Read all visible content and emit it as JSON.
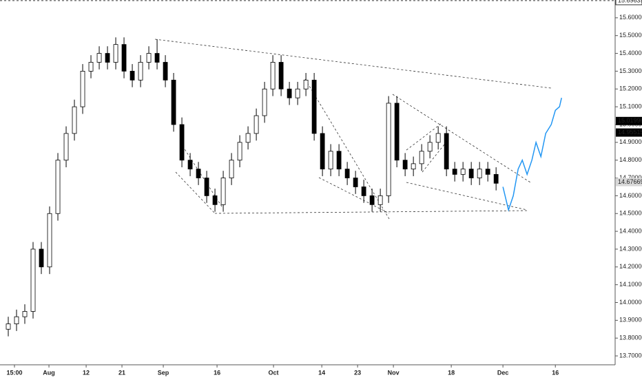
{
  "chart_data": {
    "type": "candlestick",
    "open": [
      13.85,
      13.88,
      13.92,
      13.95,
      14.3,
      14.2,
      14.5,
      14.8,
      14.95,
      15.1,
      15.3,
      15.35,
      15.4,
      15.35,
      15.45,
      15.3,
      15.25,
      15.35,
      15.4,
      15.35,
      15.25,
      15.0,
      14.8,
      14.75,
      14.7,
      14.6,
      14.55,
      14.7,
      14.8,
      14.9,
      14.95,
      15.05,
      15.2,
      15.35,
      15.2,
      15.15,
      15.2,
      15.25,
      14.95,
      14.75,
      14.85,
      14.75,
      14.7,
      14.65,
      14.6,
      14.55,
      14.6,
      15.12,
      14.8,
      14.75,
      14.78,
      14.85,
      14.9,
      14.95,
      14.75,
      14.72,
      14.75,
      14.7,
      14.75,
      14.72
    ],
    "high": [
      13.92,
      13.96,
      13.99,
      14.34,
      14.34,
      14.54,
      14.84,
      14.99,
      15.14,
      15.34,
      15.39,
      15.44,
      15.44,
      15.49,
      15.49,
      15.34,
      15.39,
      15.44,
      15.48,
      15.39,
      15.29,
      15.04,
      14.84,
      14.79,
      14.74,
      14.64,
      14.74,
      14.84,
      14.94,
      14.99,
      15.09,
      15.24,
      15.39,
      15.39,
      15.24,
      15.24,
      15.29,
      15.29,
      14.99,
      14.89,
      14.89,
      14.79,
      14.74,
      14.69,
      14.64,
      14.64,
      15.16,
      15.16,
      14.84,
      14.82,
      14.89,
      14.94,
      14.99,
      14.99,
      14.79,
      14.79,
      14.79,
      14.79,
      14.79,
      14.76
    ],
    "low": [
      13.81,
      13.84,
      13.88,
      13.91,
      14.16,
      14.16,
      14.46,
      14.76,
      14.91,
      15.06,
      15.26,
      15.31,
      15.31,
      15.31,
      15.26,
      15.21,
      15.21,
      15.31,
      15.31,
      15.21,
      14.96,
      14.76,
      14.71,
      14.66,
      14.56,
      14.51,
      14.51,
      14.66,
      14.76,
      14.86,
      14.91,
      15.01,
      15.16,
      15.16,
      15.11,
      15.11,
      15.16,
      14.91,
      14.71,
      14.71,
      14.71,
      14.66,
      14.61,
      14.56,
      14.51,
      14.51,
      14.56,
      14.76,
      14.71,
      14.71,
      14.74,
      14.81,
      14.86,
      14.71,
      14.68,
      14.68,
      14.66,
      14.66,
      14.68,
      14.63
    ],
    "close": [
      13.88,
      13.92,
      13.95,
      14.3,
      14.2,
      14.5,
      14.8,
      14.95,
      15.1,
      15.3,
      15.35,
      15.4,
      15.35,
      15.45,
      15.3,
      15.25,
      15.35,
      15.4,
      15.35,
      15.25,
      15.0,
      14.8,
      14.75,
      14.7,
      14.6,
      14.55,
      14.7,
      14.8,
      14.9,
      14.95,
      15.05,
      15.2,
      15.35,
      15.2,
      15.15,
      15.2,
      15.25,
      14.95,
      14.75,
      14.85,
      14.75,
      14.7,
      14.65,
      14.6,
      14.55,
      14.6,
      15.12,
      14.8,
      14.75,
      14.78,
      14.85,
      14.9,
      14.95,
      14.75,
      14.72,
      14.75,
      14.7,
      14.75,
      14.72,
      14.67
    ],
    "projection": {
      "color": "#2196f3",
      "x": [
        59.83,
        60.5,
        61.08,
        61.67,
        62.17,
        62.75,
        63.33,
        63.83,
        64.42,
        65,
        65.67,
        66.17,
        66.67,
        66.92
      ],
      "values": [
        14.65,
        14.52,
        14.6,
        14.75,
        14.8,
        14.72,
        14.8,
        14.9,
        14.82,
        14.95,
        15.0,
        15.08,
        15.1,
        15.15
      ]
    },
    "xlim": [
      -1,
      73.4
    ],
    "xticks": [
      {
        "value": 0.75,
        "label": "15:00"
      },
      {
        "value": 4.92,
        "label": "Aug"
      },
      {
        "value": 9.42,
        "label": "12"
      },
      {
        "value": 13.75,
        "label": "21"
      },
      {
        "value": 18.75,
        "label": "Sep"
      },
      {
        "value": 25.25,
        "label": "16"
      },
      {
        "value": 32.08,
        "label": "Oct"
      },
      {
        "value": 37.92,
        "label": "14"
      },
      {
        "value": 42.25,
        "label": "23"
      },
      {
        "value": 46.58,
        "label": "Nov"
      },
      {
        "value": 53.58,
        "label": "18"
      },
      {
        "value": 59.83,
        "label": "Dec"
      },
      {
        "value": 66.17,
        "label": "16"
      }
    ],
    "ylim": [
      13.65,
      15.7
    ],
    "yticks": [
      {
        "value": 13.7,
        "label": "13.70000"
      },
      {
        "value": 13.8,
        "label": "13.80000"
      },
      {
        "value": 13.9,
        "label": "13.90000"
      },
      {
        "value": 14.0,
        "label": "14.00000"
      },
      {
        "value": 14.1,
        "label": "14.10000"
      },
      {
        "value": 14.2,
        "label": "14.20000"
      },
      {
        "value": 14.3,
        "label": "14.30000"
      },
      {
        "value": 14.4,
        "label": "14.40000"
      },
      {
        "value": 14.5,
        "label": "14.50000"
      },
      {
        "value": 14.6,
        "label": "14.60000"
      },
      {
        "value": 14.7,
        "label": "14.70000"
      },
      {
        "value": 14.8,
        "label": "14.80000"
      },
      {
        "value": 14.9,
        "label": "14.90000"
      },
      {
        "value": 15.0,
        "label": "15.00000"
      },
      {
        "value": 15.1,
        "label": "15.10000"
      },
      {
        "value": 15.2,
        "label": "15.20000"
      },
      {
        "value": 15.3,
        "label": "15.30000"
      },
      {
        "value": 15.4,
        "label": "15.40000"
      },
      {
        "value": 15.5,
        "label": "15.50000"
      },
      {
        "value": 15.6,
        "label": "15.60000"
      }
    ],
    "price_markers": [
      15.69639,
      15.01996,
      14.95515,
      14.67669
    ]
  }
}
